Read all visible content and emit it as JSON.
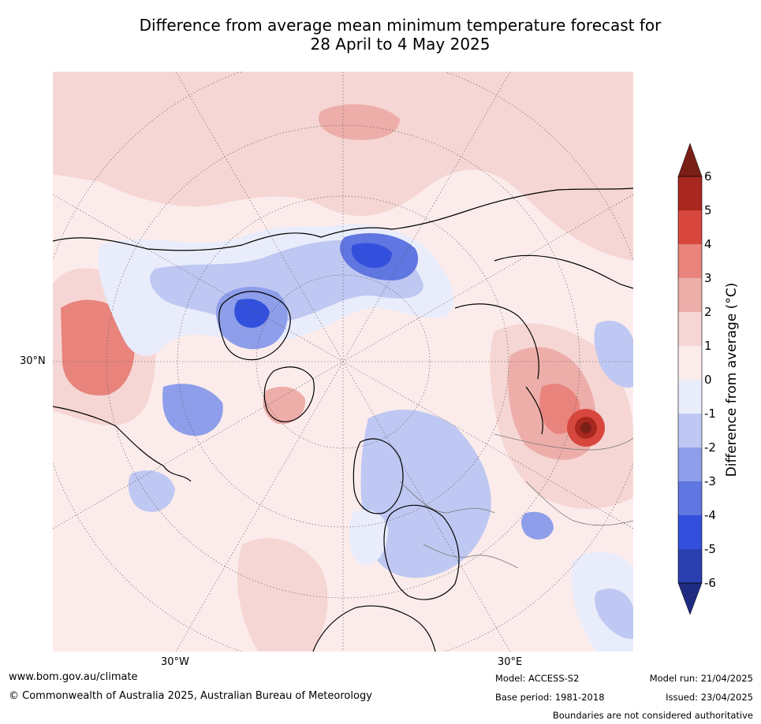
{
  "title_line1": "Difference from average mean minimum temperature forecast for",
  "title_line2": "28 April to 4 May 2025",
  "map": {
    "labels": {
      "lat30": "30°N",
      "lon_w": "30°W",
      "lon_e": "30°E"
    },
    "regions": [
      {
        "name": "central-europe",
        "value_bin": "-2 to -1"
      },
      {
        "name": "eastern-siberia-lake",
        "value_bin": "5 to 6"
      },
      {
        "name": "greenland-ellesmere",
        "value_bin": "-6 to -4"
      },
      {
        "name": "north-pacific",
        "value_bin": "2 to 3"
      }
    ]
  },
  "colorbar": {
    "title": "Difference from average (°C)",
    "ticks": [
      "6",
      "5",
      "4",
      "3",
      "2",
      "1",
      "0",
      "-1",
      "-2",
      "-3",
      "-4",
      "-5",
      "-6"
    ],
    "colors": {
      "5_6": "#a8271f",
      "4_5": "#d8473d",
      "3_4": "#e8847c",
      "2_3": "#edaeaa",
      "1_2": "#f5d6d4",
      "0_1": "#fbeceb",
      "-1_0": "#e9ecfb",
      "-2_-1": "#bfc8f2",
      "-3_-2": "#8e9eea",
      "-4_-3": "#6076e0",
      "-5_-4": "#3350dc",
      "-6_-5": "#2a3fb0",
      "over": "#7a1f16",
      "under": "#1f2b80"
    }
  },
  "footer": {
    "url": "www.bom.gov.au/climate",
    "copyright": "© Commonwealth of Australia 2025, Australian Bureau of Meteorology",
    "model": "Model: ACCESS-S2",
    "base_period": "Base period: 1981-2018",
    "model_run": "Model run: 21/04/2025",
    "issued": "Issued: 23/04/2025",
    "boundaries": "Boundaries are not considered authoritative"
  }
}
